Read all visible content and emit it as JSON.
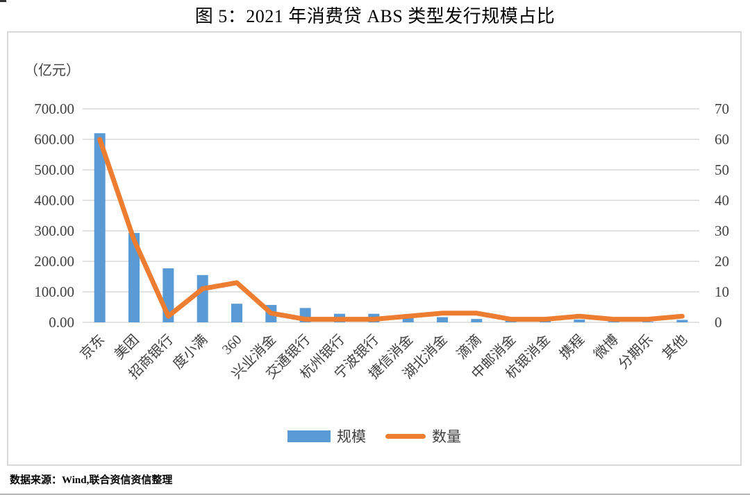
{
  "page": {
    "title": "图 5：2021 年消费贷 ABS 类型发行规模占比",
    "source_note": "数据来源：Wind,联合资信资信整理"
  },
  "chart_data": {
    "type": "combo",
    "title": "图 5：2021 年消费贷 ABS 类型发行规模占比",
    "categories": [
      "京东",
      "美团",
      "招商银行",
      "度小满",
      "360",
      "兴业消金",
      "交通银行",
      "杭州银行",
      "宁波银行",
      "捷信消金",
      "湖北消金",
      "滴滴",
      "中邮消金",
      "杭银消金",
      "携程",
      "微博",
      "分期乐",
      "其他"
    ],
    "series": [
      {
        "name": "规模",
        "type": "bar",
        "axis": "left",
        "color": "#5B9BD5",
        "values": [
          620,
          293,
          177,
          155,
          61,
          57,
          47,
          28,
          28,
          21,
          17,
          11,
          5,
          4,
          9,
          3,
          2,
          8
        ]
      },
      {
        "name": "数量",
        "type": "line",
        "axis": "right",
        "color": "#ED7D31",
        "values": [
          60,
          27,
          2,
          11,
          13,
          3,
          1,
          1,
          1,
          2,
          3,
          3,
          1,
          1,
          2,
          1,
          1,
          2
        ]
      }
    ],
    "left_axis": {
      "label": "（亿元）",
      "min": 0,
      "max": 700,
      "step": 100,
      "ticks": [
        "700.00",
        "600.00",
        "500.00",
        "400.00",
        "300.00",
        "200.00",
        "100.00",
        "0.00"
      ]
    },
    "right_axis": {
      "min": 0,
      "max": 70,
      "step": 10,
      "ticks": [
        "70",
        "60",
        "50",
        "40",
        "30",
        "20",
        "10",
        "0"
      ]
    },
    "grid": true,
    "legend_position": "bottom",
    "gridline_color": "#D9D9D9",
    "text_color": "#404040"
  }
}
